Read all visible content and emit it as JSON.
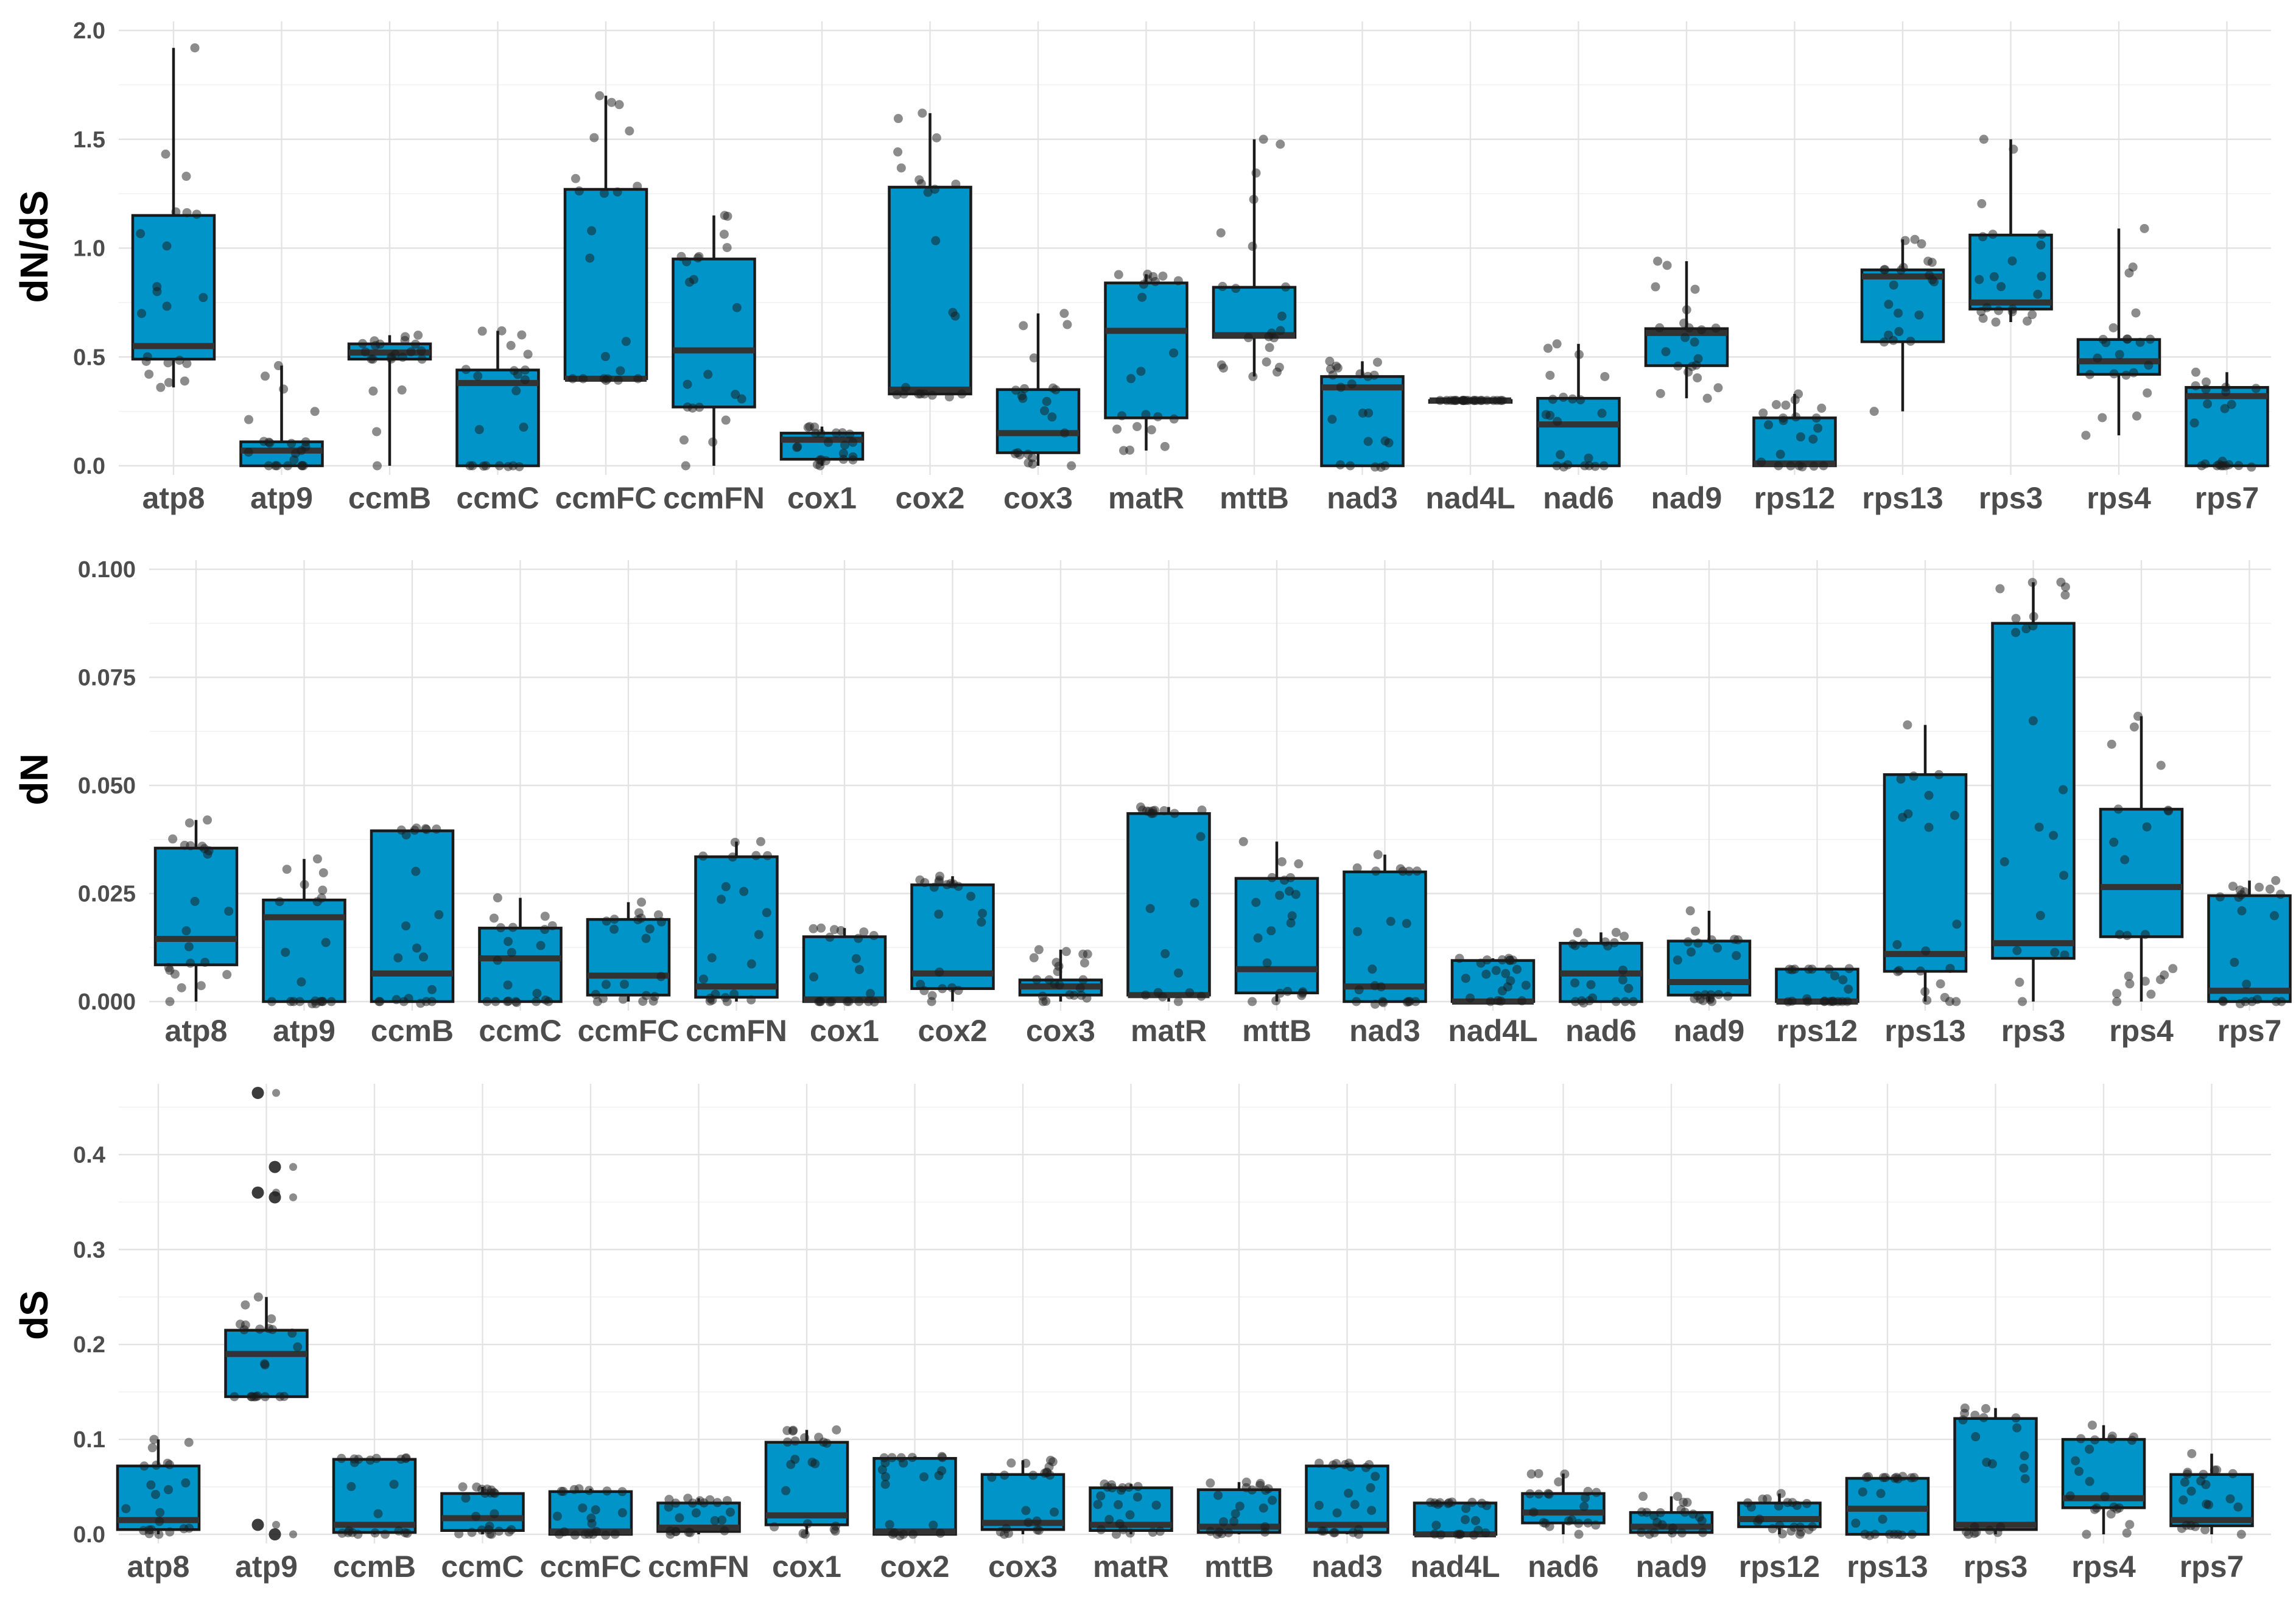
{
  "chart_data": [
    {
      "type": "boxplot",
      "ylabel": "dN/dS",
      "ylim": [
        0,
        2.0
      ],
      "yticks": [
        "0.0",
        "0.5",
        "1.0",
        "1.5",
        "2.0"
      ],
      "ytick_values": [
        0,
        0.5,
        1.0,
        1.5,
        2.0
      ],
      "categories": [
        "atp8",
        "atp9",
        "ccmB",
        "ccmC",
        "ccmFC",
        "ccmFN",
        "cox1",
        "cox2",
        "cox3",
        "matR",
        "mttB",
        "nad3",
        "nad4L",
        "nad6",
        "nad9",
        "rps12",
        "rps13",
        "rps3",
        "rps4",
        "rps7"
      ],
      "boxes": [
        {
          "min": 0.36,
          "q1": 0.49,
          "median": 0.55,
          "q3": 1.15,
          "max": 1.92
        },
        {
          "min": 0.0,
          "q1": 0.0,
          "median": 0.07,
          "q3": 0.11,
          "max": 0.46
        },
        {
          "min": 0.0,
          "q1": 0.49,
          "median": 0.52,
          "q3": 0.56,
          "max": 0.6
        },
        {
          "min": 0.0,
          "q1": 0.0,
          "median": 0.38,
          "q3": 0.44,
          "max": 0.62
        },
        {
          "min": 0.4,
          "q1": 0.4,
          "median": 0.4,
          "q3": 1.27,
          "max": 1.7
        },
        {
          "min": 0.0,
          "q1": 0.27,
          "median": 0.53,
          "q3": 0.95,
          "max": 1.15
        },
        {
          "min": 0.0,
          "q1": 0.03,
          "median": 0.12,
          "q3": 0.15,
          "max": 0.18
        },
        {
          "min": 0.33,
          "q1": 0.33,
          "median": 0.35,
          "q3": 1.28,
          "max": 1.62
        },
        {
          "min": 0.0,
          "q1": 0.06,
          "median": 0.15,
          "q3": 0.35,
          "max": 0.7
        },
        {
          "min": 0.07,
          "q1": 0.22,
          "median": 0.62,
          "q3": 0.84,
          "max": 0.88
        },
        {
          "min": 0.41,
          "q1": 0.59,
          "median": 0.6,
          "q3": 0.82,
          "max": 1.5
        },
        {
          "min": 0.0,
          "q1": 0.0,
          "median": 0.36,
          "q3": 0.41,
          "max": 0.48
        },
        {
          "min": 0.3,
          "q1": 0.3,
          "median": 0.3,
          "q3": 0.3,
          "max": 0.3
        },
        {
          "min": 0.0,
          "q1": 0.0,
          "median": 0.19,
          "q3": 0.31,
          "max": 0.56
        },
        {
          "min": 0.31,
          "q1": 0.46,
          "median": 0.61,
          "q3": 0.63,
          "max": 0.94
        },
        {
          "min": 0.0,
          "q1": 0.0,
          "median": 0.01,
          "q3": 0.22,
          "max": 0.33
        },
        {
          "min": 0.25,
          "q1": 0.57,
          "median": 0.87,
          "q3": 0.9,
          "max": 1.04
        },
        {
          "min": 0.66,
          "q1": 0.72,
          "median": 0.75,
          "q3": 1.06,
          "max": 1.5
        },
        {
          "min": 0.14,
          "q1": 0.42,
          "median": 0.48,
          "q3": 0.58,
          "max": 1.09
        },
        {
          "min": 0.0,
          "q1": 0.0,
          "median": 0.32,
          "q3": 0.36,
          "max": 0.43
        }
      ]
    },
    {
      "type": "boxplot",
      "ylabel": "dN",
      "ylim": [
        0,
        0.1
      ],
      "yticks": [
        "0.000",
        "0.025",
        "0.050",
        "0.075",
        "0.100"
      ],
      "ytick_values": [
        0,
        0.025,
        0.05,
        0.075,
        0.1
      ],
      "categories": [
        "atp8",
        "atp9",
        "ccmB",
        "ccmC",
        "ccmFC",
        "ccmFN",
        "cox1",
        "cox2",
        "cox3",
        "matR",
        "mttB",
        "nad3",
        "nad4L",
        "nad6",
        "nad9",
        "rps12",
        "rps13",
        "rps3",
        "rps4",
        "rps7"
      ],
      "boxes": [
        {
          "min": 0.0,
          "q1": 0.0085,
          "median": 0.0145,
          "q3": 0.0355,
          "max": 0.042
        },
        {
          "min": 0.0,
          "q1": 0.0,
          "median": 0.0195,
          "q3": 0.0235,
          "max": 0.033
        },
        {
          "min": 0.0,
          "q1": 0.0,
          "median": 0.0065,
          "q3": 0.0395,
          "max": 0.04
        },
        {
          "min": 0.0,
          "q1": 0.0,
          "median": 0.01,
          "q3": 0.017,
          "max": 0.024
        },
        {
          "min": 0.0,
          "q1": 0.0015,
          "median": 0.006,
          "q3": 0.019,
          "max": 0.023
        },
        {
          "min": 0.0,
          "q1": 0.001,
          "median": 0.0035,
          "q3": 0.0335,
          "max": 0.037
        },
        {
          "min": 0.0,
          "q1": 0.0,
          "median": 0.0005,
          "q3": 0.015,
          "max": 0.017
        },
        {
          "min": 0.0,
          "q1": 0.003,
          "median": 0.0065,
          "q3": 0.027,
          "max": 0.029
        },
        {
          "min": 0.0,
          "q1": 0.0015,
          "median": 0.0035,
          "q3": 0.005,
          "max": 0.012
        },
        {
          "min": 0.0,
          "q1": 0.0015,
          "median": 0.0015,
          "q3": 0.0435,
          "max": 0.045
        },
        {
          "min": 0.0,
          "q1": 0.002,
          "median": 0.0075,
          "q3": 0.0285,
          "max": 0.037
        },
        {
          "min": 0.0,
          "q1": 0.0,
          "median": 0.0035,
          "q3": 0.03,
          "max": 0.034
        },
        {
          "min": 0.0,
          "q1": 0.0,
          "median": 0.0,
          "q3": 0.0095,
          "max": 0.01
        },
        {
          "min": 0.0,
          "q1": 0.0,
          "median": 0.0065,
          "q3": 0.0135,
          "max": 0.016
        },
        {
          "min": 0.0,
          "q1": 0.0015,
          "median": 0.0045,
          "q3": 0.014,
          "max": 0.021
        },
        {
          "min": 0.0,
          "q1": 0.0,
          "median": 0.0,
          "q3": 0.0075,
          "max": 0.0075
        },
        {
          "min": 0.0,
          "q1": 0.007,
          "median": 0.011,
          "q3": 0.0525,
          "max": 0.064
        },
        {
          "min": 0.0,
          "q1": 0.01,
          "median": 0.0135,
          "q3": 0.0875,
          "max": 0.097
        },
        {
          "min": 0.0,
          "q1": 0.015,
          "median": 0.0265,
          "q3": 0.0445,
          "max": 0.066
        },
        {
          "min": 0.0,
          "q1": 0.0,
          "median": 0.0025,
          "q3": 0.0245,
          "max": 0.028
        }
      ]
    },
    {
      "type": "boxplot",
      "ylabel": "dS",
      "ylim": [
        0,
        0.47
      ],
      "yticks": [
        "0.0",
        "0.1",
        "0.2",
        "0.3",
        "0.4"
      ],
      "ytick_values": [
        0,
        0.1,
        0.2,
        0.3,
        0.4
      ],
      "categories": [
        "atp8",
        "atp9",
        "ccmB",
        "ccmC",
        "ccmFC",
        "ccmFN",
        "cox1",
        "cox2",
        "cox3",
        "matR",
        "mttB",
        "nad3",
        "nad4L",
        "nad6",
        "nad9",
        "rps12",
        "rps13",
        "rps3",
        "rps4",
        "rps7"
      ],
      "boxes": [
        {
          "min": 0.0,
          "q1": 0.005,
          "median": 0.015,
          "q3": 0.072,
          "max": 0.1
        },
        {
          "min": 0.145,
          "q1": 0.145,
          "median": 0.19,
          "q3": 0.215,
          "max": 0.25
        },
        {
          "min": 0.0,
          "q1": 0.002,
          "median": 0.01,
          "q3": 0.079,
          "max": 0.08
        },
        {
          "min": 0.0,
          "q1": 0.004,
          "median": 0.017,
          "q3": 0.043,
          "max": 0.05
        },
        {
          "min": 0.0,
          "q1": 0.0,
          "median": 0.003,
          "q3": 0.045,
          "max": 0.048
        },
        {
          "min": 0.0,
          "q1": 0.003,
          "median": 0.007,
          "q3": 0.033,
          "max": 0.038
        },
        {
          "min": 0.0,
          "q1": 0.01,
          "median": 0.02,
          "q3": 0.097,
          "max": 0.11
        },
        {
          "min": 0.0,
          "q1": 0.0,
          "median": 0.003,
          "q3": 0.08,
          "max": 0.082
        },
        {
          "min": 0.0,
          "q1": 0.005,
          "median": 0.012,
          "q3": 0.063,
          "max": 0.078
        },
        {
          "min": 0.0,
          "q1": 0.004,
          "median": 0.01,
          "q3": 0.049,
          "max": 0.053
        },
        {
          "min": 0.0,
          "q1": 0.002,
          "median": 0.008,
          "q3": 0.047,
          "max": 0.055
        },
        {
          "min": 0.0,
          "q1": 0.002,
          "median": 0.01,
          "q3": 0.072,
          "max": 0.075
        },
        {
          "min": 0.0,
          "q1": 0.0,
          "median": 0.0,
          "q3": 0.033,
          "max": 0.034
        },
        {
          "min": 0.0,
          "q1": 0.012,
          "median": 0.023,
          "q3": 0.043,
          "max": 0.064
        },
        {
          "min": 0.0,
          "q1": 0.002,
          "median": 0.008,
          "q3": 0.023,
          "max": 0.04
        },
        {
          "min": 0.0,
          "q1": 0.008,
          "median": 0.016,
          "q3": 0.033,
          "max": 0.043
        },
        {
          "min": 0.0,
          "q1": 0.0,
          "median": 0.027,
          "q3": 0.059,
          "max": 0.061
        },
        {
          "min": 0.0,
          "q1": 0.005,
          "median": 0.01,
          "q3": 0.122,
          "max": 0.133
        },
        {
          "min": 0.0,
          "q1": 0.028,
          "median": 0.038,
          "q3": 0.1,
          "max": 0.115
        },
        {
          "min": 0.0,
          "q1": 0.009,
          "median": 0.015,
          "q3": 0.063,
          "max": 0.085
        }
      ],
      "outliers": [
        {
          "category": "atp9",
          "values": [
            0.465,
            0.387,
            0.36,
            0.355,
            0.01,
            0.0
          ]
        }
      ]
    }
  ],
  "colors": {
    "box_fill": "#0094c8",
    "box_stroke": "#1a1a1a",
    "median": "#333333",
    "points": "#1a1a1a",
    "grid": "#e3e3e3"
  }
}
